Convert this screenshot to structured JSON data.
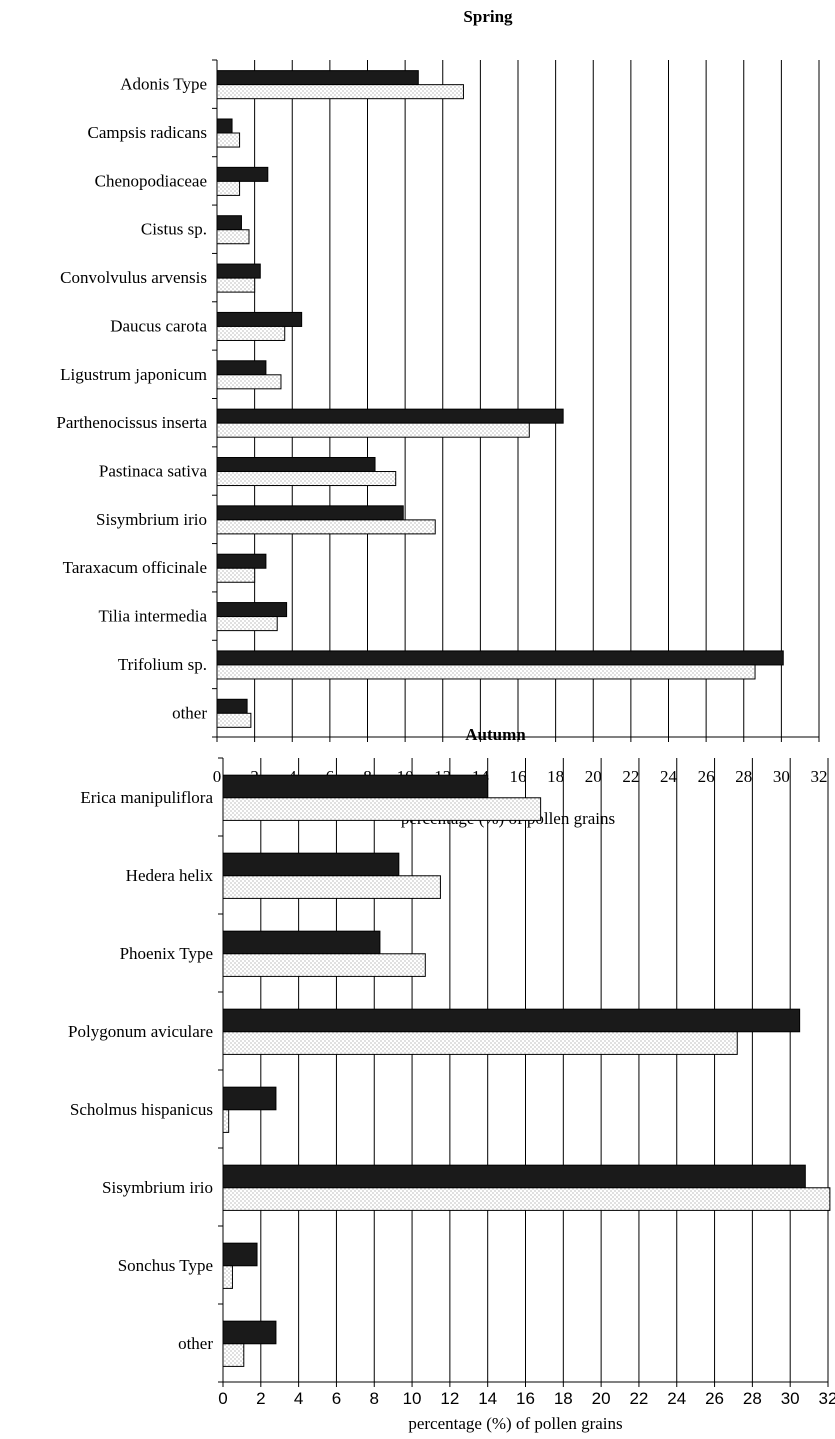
{
  "chart_data": [
    {
      "type": "bar",
      "orientation": "horizontal",
      "title": "Spring",
      "xlabel": "percentage (%) of pollen grains",
      "ylabel": "",
      "xlim": [
        0,
        32
      ],
      "xticks": [
        "0",
        "2",
        "4",
        "6",
        "8",
        "10",
        "12",
        "14",
        "16",
        "18",
        "20",
        "22",
        "24",
        "26",
        "28",
        "30",
        "32"
      ],
      "grid": "vertical",
      "legend": "none",
      "categories": [
        "Adonis Type",
        "Campsis radicans",
        "Chenopodiaceae",
        "Cistus sp.",
        "Convolvulus arvensis",
        "Daucus carota",
        "Ligustrum japonicum",
        "Parthenocissus inserta",
        "Pastinaca sativa",
        "Sisymbrium irio",
        "Taraxacum officinale",
        "Tilia intermedia",
        "Trifolium sp.",
        "other"
      ],
      "series": [
        {
          "fill": "#1a1a1a",
          "values": [
            10.7,
            0.8,
            2.7,
            1.3,
            2.3,
            4.5,
            2.6,
            18.4,
            8.4,
            9.9,
            2.6,
            3.7,
            30.1,
            1.6
          ]
        },
        {
          "fill": "dotted",
          "values": [
            13.1,
            1.2,
            1.2,
            1.7,
            2.0,
            3.6,
            3.4,
            16.6,
            9.5,
            11.6,
            2.0,
            3.2,
            28.6,
            1.8
          ]
        }
      ]
    },
    {
      "type": "bar",
      "orientation": "horizontal",
      "title": "Autumn",
      "xlabel": "percentage (%) of pollen grains",
      "ylabel": "",
      "xlim": [
        0,
        32
      ],
      "xticks": [
        "0",
        "2",
        "4",
        "6",
        "8",
        "10",
        "12",
        "14",
        "16",
        "18",
        "20",
        "22",
        "24",
        "26",
        "28",
        "30",
        "32"
      ],
      "grid": "vertical",
      "legend": "none",
      "categories": [
        "Erica manipuliflora",
        "Hedera helix",
        "Phoenix Type",
        "Polygonum aviculare",
        "Scholmus hispanicus",
        "Sisymbrium irio",
        "Sonchus Type",
        "other"
      ],
      "series": [
        {
          "fill": "#1a1a1a",
          "values": [
            14.0,
            9.3,
            8.3,
            30.5,
            2.8,
            30.8,
            1.8,
            2.8
          ]
        },
        {
          "fill": "dotted",
          "values": [
            16.8,
            11.5,
            10.7,
            27.2,
            0.3,
            32.1,
            0.5,
            1.1
          ]
        }
      ]
    }
  ]
}
